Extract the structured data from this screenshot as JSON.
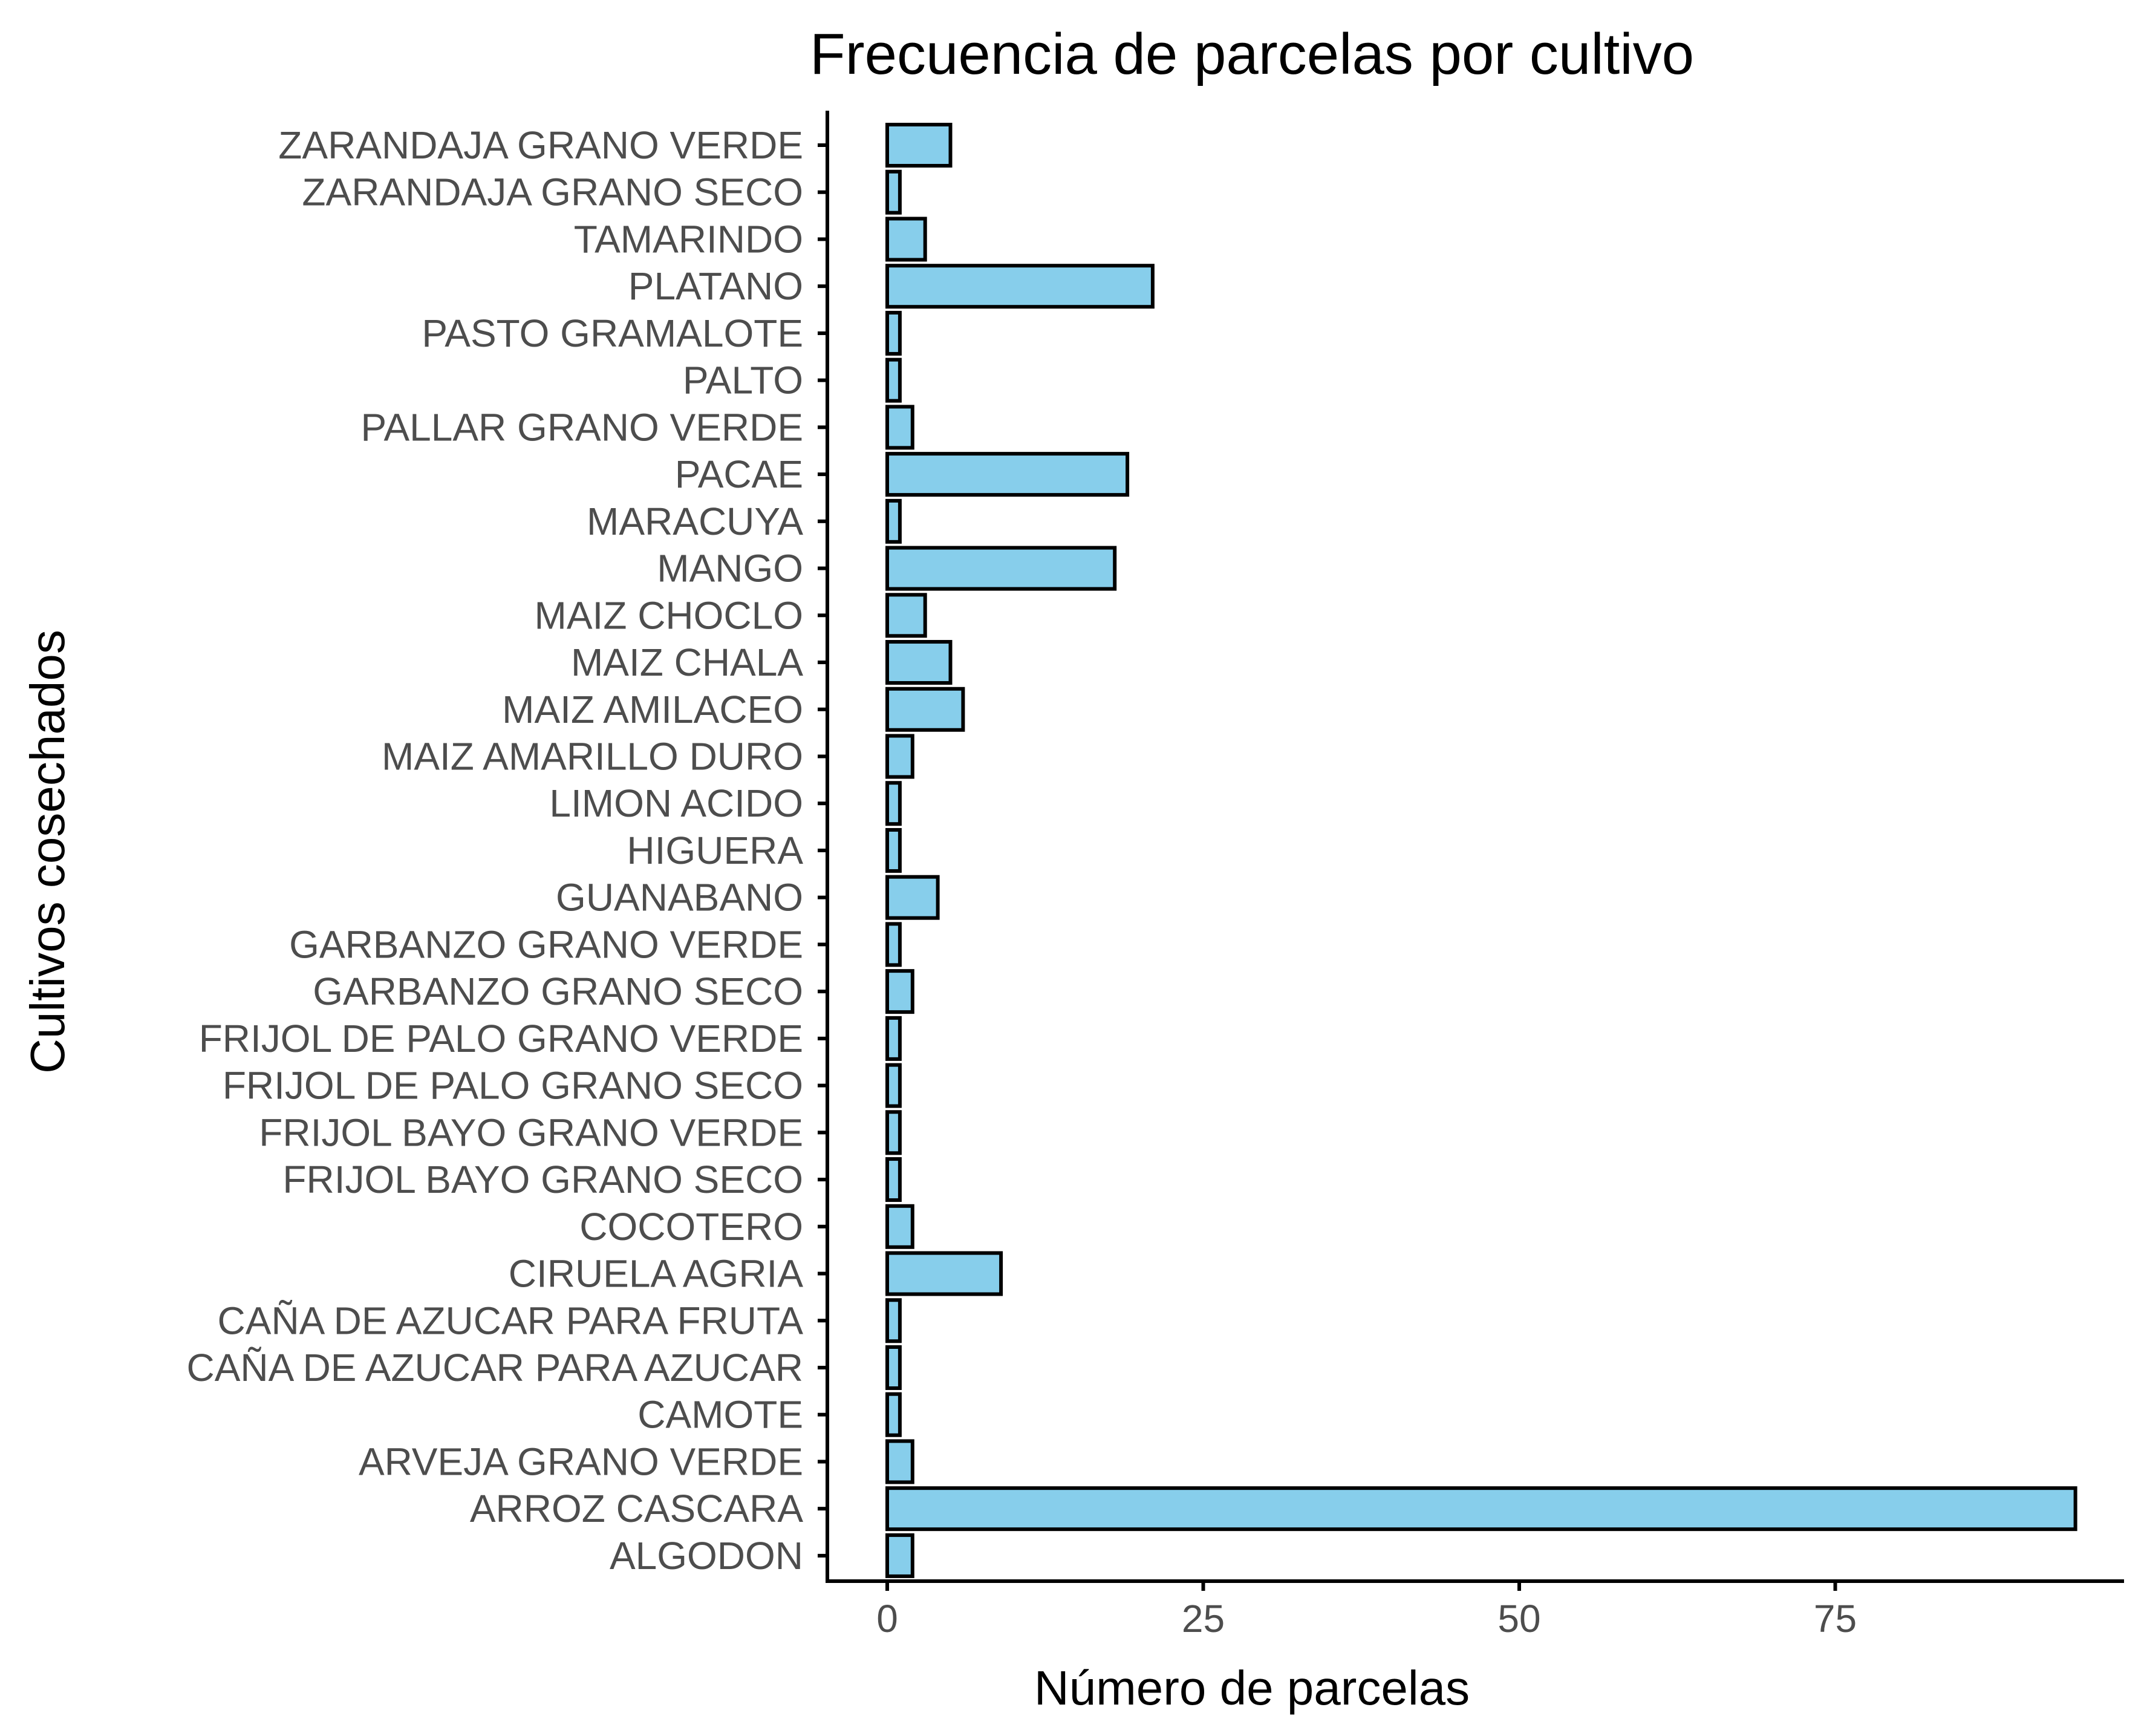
{
  "chart_data": {
    "type": "bar",
    "orientation": "horizontal",
    "title": "Frecuencia de parcelas por cultivo",
    "xlabel": "Número de parcelas",
    "ylabel": "Cultivos cosechados",
    "categories": [
      "ZARANDAJA GRANO VERDE",
      "ZARANDAJA GRANO SECO",
      "TAMARINDO",
      "PLATANO",
      "PASTO GRAMALOTE",
      "PALTO",
      "PALLAR GRANO VERDE",
      "PACAE",
      "MARACUYA",
      "MANGO",
      "MAIZ CHOCLO",
      "MAIZ CHALA",
      "MAIZ AMILACEO",
      "MAIZ AMARILLO DURO",
      "LIMON ACIDO",
      "HIGUERA",
      "GUANABANO",
      "GARBANZO GRANO VERDE",
      "GARBANZO GRANO SECO",
      "FRIJOL DE PALO GRANO VERDE",
      "FRIJOL DE PALO GRANO SECO",
      "FRIJOL BAYO GRANO VERDE",
      "FRIJOL BAYO GRANO SECO",
      "COCOTERO",
      "CIRUELA AGRIA",
      "CAÑA DE AZUCAR PARA FRUTA",
      "CAÑA DE AZUCAR PARA AZUCAR",
      "CAMOTE",
      "ARVEJA GRANO VERDE",
      "ARROZ CASCARA",
      "ALGODON"
    ],
    "values": [
      5,
      1,
      3,
      21,
      1,
      1,
      2,
      19,
      1,
      18,
      3,
      5,
      6,
      2,
      1,
      1,
      4,
      1,
      2,
      1,
      1,
      1,
      1,
      2,
      9,
      1,
      1,
      1,
      2,
      94,
      2
    ],
    "x_ticks": [
      0,
      25,
      50,
      75
    ],
    "xlim": [
      -4.7,
      98.7
    ],
    "grid": false,
    "legend": "none",
    "bar_fill": "#87CEEB",
    "bar_stroke": "#000000"
  }
}
